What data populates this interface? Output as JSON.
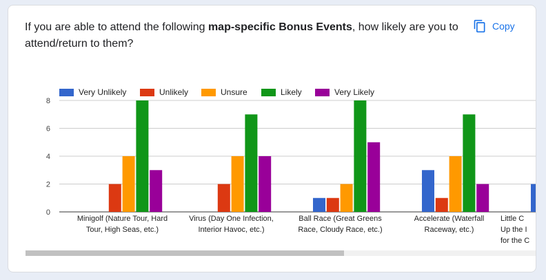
{
  "question": {
    "prefix": "If you are able to attend the following ",
    "bold": "map-specific Bonus Events",
    "suffix": ", how likely are you to attend/return to them?"
  },
  "copy_button": {
    "label": "Copy",
    "icon": "copy-icon"
  },
  "colors": {
    "Very Unlikely": "#3366cc",
    "Unlikely": "#dc3912",
    "Unsure": "#ff9900",
    "Likely": "#109618",
    "Very Likely": "#990099"
  },
  "chart_data": {
    "type": "bar",
    "categories": [
      [
        "Minigolf (Nature Tour, Hard",
        "Tour, High Seas, etc.)"
      ],
      [
        "Virus (Day One Infection,",
        "Interior Havoc, etc.)"
      ],
      [
        "Ball Race (Great Greens",
        "Race, Cloudy Race, etc.)"
      ],
      [
        "Accelerate (Waterfall",
        "Raceway, etc.)"
      ],
      [
        "Little C",
        "Up the I",
        "for the C"
      ]
    ],
    "series": [
      {
        "name": "Very Unlikely",
        "values": [
          0,
          0,
          1,
          3,
          2
        ]
      },
      {
        "name": "Unlikely",
        "values": [
          2,
          2,
          1,
          1,
          null
        ]
      },
      {
        "name": "Unsure",
        "values": [
          4,
          4,
          2,
          4,
          null
        ]
      },
      {
        "name": "Likely",
        "values": [
          8,
          7,
          8,
          7,
          null
        ]
      },
      {
        "name": "Very Likely",
        "values": [
          3,
          4,
          5,
          2,
          null
        ]
      }
    ],
    "yticks": [
      0,
      2,
      4,
      6,
      8
    ],
    "ylim": [
      0,
      8.2
    ],
    "grid": true,
    "legend_position": "top"
  }
}
